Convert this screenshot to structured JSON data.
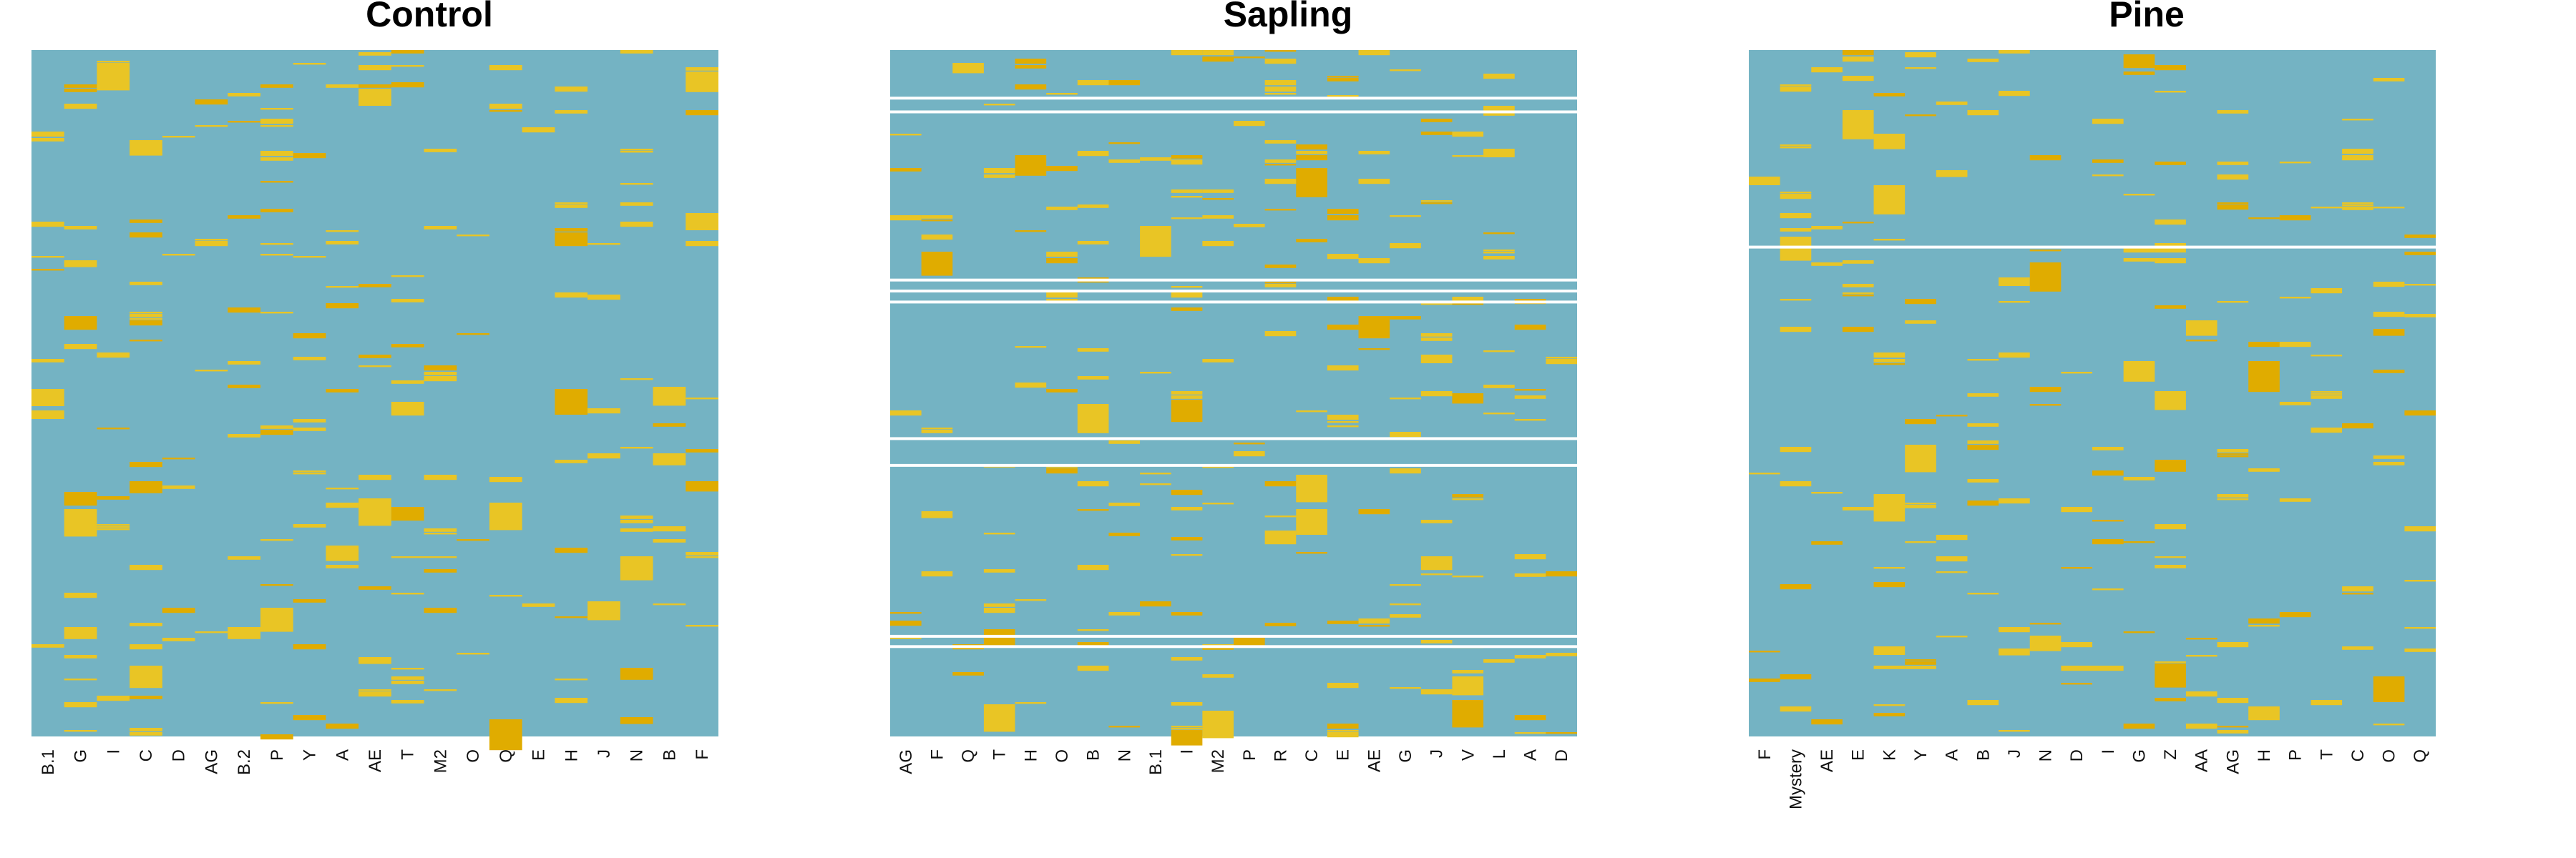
{
  "colors": {
    "background": "#74b3c3",
    "present": "#e9c525",
    "present_dark": "#e0ac00",
    "gap": "#ffffff"
  },
  "chart_data": [
    {
      "type": "heatmap",
      "title": "Control",
      "categories": [
        "B.1",
        "G",
        "I",
        "C",
        "D",
        "AG",
        "B.2",
        "P",
        "Y",
        "A",
        "AE",
        "T",
        "M2",
        "O",
        "Q",
        "E",
        "H",
        "J",
        "N",
        "B",
        "F"
      ],
      "row_gaps": []
    },
    {
      "type": "heatmap",
      "title": "Sapling",
      "categories": [
        "AG",
        "F",
        "Q",
        "T",
        "H",
        "O",
        "B",
        "N",
        "B.1",
        "I",
        "M2",
        "P",
        "R",
        "C",
        "E",
        "AE",
        "G",
        "J",
        "V",
        "L",
        "A",
        "D"
      ],
      "row_gaps": [
        0.068,
        0.088,
        0.333,
        0.349,
        0.365,
        0.564,
        0.603,
        0.852,
        0.867
      ]
    },
    {
      "type": "heatmap",
      "title": "Pine",
      "categories": [
        "F",
        "Mystery",
        "AE",
        "E",
        "K",
        "Y",
        "A",
        "B",
        "J",
        "N",
        "D",
        "I",
        "G",
        "Z",
        "AA",
        "AG",
        "H",
        "P",
        "T",
        "C",
        "O",
        "Q"
      ],
      "row_gaps": [
        0.285
      ]
    }
  ]
}
